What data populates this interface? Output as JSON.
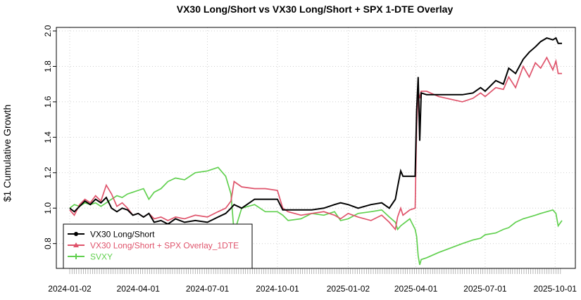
{
  "chart_data": {
    "type": "line",
    "title": "VX30 Long/Short vs VX30 Long/Short + SPX 1-DTE Overlay",
    "xlabel": "",
    "ylabel": "$1 Cumulative Growth",
    "x_ticks": [
      "2024-01-02",
      "2024-04-01",
      "2024-07-01",
      "2024-10-01",
      "2025-01-02",
      "2025-04-01",
      "2025-07-01",
      "2025-10-01"
    ],
    "y_ticks": [
      0.8,
      1.0,
      1.2,
      1.4,
      1.6,
      1.8,
      2.0
    ],
    "xlim": [
      "2024-01-02",
      "2025-10-10"
    ],
    "ylim": [
      0.66,
      2.02
    ],
    "grid": true,
    "legend_position": "bottom-left",
    "series": [
      {
        "name": "VX30 Long/Short",
        "color": "#000000",
        "marker": "circle",
        "points": [
          [
            "2024-01-02",
            1.0
          ],
          [
            "2024-01-08",
            0.98
          ],
          [
            "2024-01-15",
            1.01
          ],
          [
            "2024-01-22",
            1.04
          ],
          [
            "2024-01-29",
            1.02
          ],
          [
            "2024-02-05",
            1.05
          ],
          [
            "2024-02-12",
            1.03
          ],
          [
            "2024-02-19",
            1.06
          ],
          [
            "2024-02-26",
            1.0
          ],
          [
            "2024-03-04",
            0.98
          ],
          [
            "2024-03-11",
            1.0
          ],
          [
            "2024-03-18",
            0.99
          ],
          [
            "2024-03-25",
            0.96
          ],
          [
            "2024-04-01",
            0.97
          ],
          [
            "2024-04-08",
            0.95
          ],
          [
            "2024-04-15",
            0.97
          ],
          [
            "2024-04-22",
            0.92
          ],
          [
            "2024-05-01",
            0.93
          ],
          [
            "2024-05-10",
            0.91
          ],
          [
            "2024-05-20",
            0.94
          ],
          [
            "2024-06-01",
            0.92
          ],
          [
            "2024-06-15",
            0.93
          ],
          [
            "2024-07-01",
            0.92
          ],
          [
            "2024-07-15",
            0.95
          ],
          [
            "2024-07-25",
            0.97
          ],
          [
            "2024-08-01",
            1.0
          ],
          [
            "2024-08-05",
            1.02
          ],
          [
            "2024-08-15",
            1.0
          ],
          [
            "2024-09-01",
            1.05
          ],
          [
            "2024-09-15",
            1.05
          ],
          [
            "2024-10-01",
            1.05
          ],
          [
            "2024-10-08",
            0.99
          ],
          [
            "2024-10-15",
            0.99
          ],
          [
            "2024-11-01",
            0.99
          ],
          [
            "2024-11-15",
            0.99
          ],
          [
            "2024-12-01",
            1.0
          ],
          [
            "2024-12-15",
            1.02
          ],
          [
            "2024-12-23",
            1.03
          ],
          [
            "2025-01-02",
            1.02
          ],
          [
            "2025-01-15",
            1.0
          ],
          [
            "2025-02-01",
            1.02
          ],
          [
            "2025-02-15",
            1.03
          ],
          [
            "2025-02-25",
            1.0
          ],
          [
            "2025-03-05",
            1.05
          ],
          [
            "2025-03-08",
            1.12
          ],
          [
            "2025-03-12",
            1.21
          ],
          [
            "2025-03-15",
            1.18
          ],
          [
            "2025-03-24",
            1.18
          ],
          [
            "2025-03-31",
            1.18
          ],
          [
            "2025-04-02",
            1.55
          ],
          [
            "2025-04-04",
            1.74
          ],
          [
            "2025-04-06",
            1.38
          ],
          [
            "2025-04-08",
            1.65
          ],
          [
            "2025-04-15",
            1.64
          ],
          [
            "2025-05-01",
            1.64
          ],
          [
            "2025-06-01",
            1.64
          ],
          [
            "2025-06-15",
            1.65
          ],
          [
            "2025-06-25",
            1.68
          ],
          [
            "2025-07-01",
            1.66
          ],
          [
            "2025-07-15",
            1.72
          ],
          [
            "2025-07-25",
            1.7
          ],
          [
            "2025-08-01",
            1.79
          ],
          [
            "2025-08-10",
            1.76
          ],
          [
            "2025-08-20",
            1.84
          ],
          [
            "2025-08-28",
            1.88
          ],
          [
            "2025-09-05",
            1.91
          ],
          [
            "2025-09-12",
            1.94
          ],
          [
            "2025-09-20",
            1.96
          ],
          [
            "2025-09-28",
            1.95
          ],
          [
            "2025-10-02",
            1.96
          ],
          [
            "2025-10-05",
            1.93
          ],
          [
            "2025-10-10",
            1.93
          ]
        ]
      },
      {
        "name": "VX30 Long/Short + SPX Overlay_1DTE",
        "color": "#df536b",
        "marker": "triangle",
        "points": [
          [
            "2024-01-02",
            0.99
          ],
          [
            "2024-01-08",
            0.96
          ],
          [
            "2024-01-15",
            1.02
          ],
          [
            "2024-01-22",
            1.05
          ],
          [
            "2024-01-29",
            1.03
          ],
          [
            "2024-02-05",
            1.07
          ],
          [
            "2024-02-12",
            1.04
          ],
          [
            "2024-02-19",
            1.13
          ],
          [
            "2024-02-26",
            1.08
          ],
          [
            "2024-03-04",
            1.01
          ],
          [
            "2024-03-11",
            1.03
          ],
          [
            "2024-03-18",
            1.0
          ],
          [
            "2024-03-25",
            0.96
          ],
          [
            "2024-04-01",
            0.97
          ],
          [
            "2024-04-08",
            0.95
          ],
          [
            "2024-04-15",
            0.97
          ],
          [
            "2024-04-22",
            0.94
          ],
          [
            "2024-05-01",
            0.95
          ],
          [
            "2024-05-10",
            0.93
          ],
          [
            "2024-05-20",
            0.95
          ],
          [
            "2024-06-01",
            0.94
          ],
          [
            "2024-06-15",
            0.96
          ],
          [
            "2024-07-01",
            0.95
          ],
          [
            "2024-07-15",
            0.98
          ],
          [
            "2024-07-25",
            1.0
          ],
          [
            "2024-08-01",
            1.04
          ],
          [
            "2024-08-05",
            1.15
          ],
          [
            "2024-08-15",
            1.12
          ],
          [
            "2024-09-01",
            1.11
          ],
          [
            "2024-09-15",
            1.11
          ],
          [
            "2024-10-01",
            1.1
          ],
          [
            "2024-10-08",
            1.0
          ],
          [
            "2024-10-15",
            0.98
          ],
          [
            "2024-11-01",
            0.96
          ],
          [
            "2024-11-15",
            0.97
          ],
          [
            "2024-12-01",
            0.98
          ],
          [
            "2024-12-15",
            0.96
          ],
          [
            "2024-12-23",
            0.94
          ],
          [
            "2025-01-02",
            0.97
          ],
          [
            "2025-01-15",
            0.95
          ],
          [
            "2025-02-01",
            0.93
          ],
          [
            "2025-02-15",
            0.96
          ],
          [
            "2025-02-25",
            0.92
          ],
          [
            "2025-03-05",
            0.88
          ],
          [
            "2025-03-08",
            0.95
          ],
          [
            "2025-03-12",
            1.0
          ],
          [
            "2025-03-15",
            0.96
          ],
          [
            "2025-03-24",
            0.99
          ],
          [
            "2025-03-31",
            1.0
          ],
          [
            "2025-04-02",
            1.46
          ],
          [
            "2025-04-04",
            1.66
          ],
          [
            "2025-04-06",
            1.62
          ],
          [
            "2025-04-08",
            1.66
          ],
          [
            "2025-04-15",
            1.66
          ],
          [
            "2025-05-01",
            1.63
          ],
          [
            "2025-06-01",
            1.6
          ],
          [
            "2025-06-15",
            1.62
          ],
          [
            "2025-06-25",
            1.65
          ],
          [
            "2025-07-01",
            1.63
          ],
          [
            "2025-07-15",
            1.68
          ],
          [
            "2025-07-25",
            1.67
          ],
          [
            "2025-08-01",
            1.74
          ],
          [
            "2025-08-10",
            1.68
          ],
          [
            "2025-08-20",
            1.8
          ],
          [
            "2025-08-28",
            1.74
          ],
          [
            "2025-09-05",
            1.82
          ],
          [
            "2025-09-12",
            1.79
          ],
          [
            "2025-09-20",
            1.85
          ],
          [
            "2025-09-28",
            1.78
          ],
          [
            "2025-10-02",
            1.83
          ],
          [
            "2025-10-05",
            1.76
          ],
          [
            "2025-10-10",
            1.76
          ]
        ]
      },
      {
        "name": "SVXY",
        "color": "#61d04f",
        "marker": "plus",
        "points": [
          [
            "2024-01-02",
            1.0
          ],
          [
            "2024-01-08",
            1.02
          ],
          [
            "2024-01-15",
            1.01
          ],
          [
            "2024-01-22",
            1.03
          ],
          [
            "2024-01-29",
            1.02
          ],
          [
            "2024-02-05",
            1.03
          ],
          [
            "2024-02-12",
            1.01
          ],
          [
            "2024-02-19",
            1.03
          ],
          [
            "2024-02-26",
            1.05
          ],
          [
            "2024-03-04",
            1.07
          ],
          [
            "2024-03-11",
            1.06
          ],
          [
            "2024-03-18",
            1.08
          ],
          [
            "2024-03-25",
            1.09
          ],
          [
            "2024-04-01",
            1.1
          ],
          [
            "2024-04-08",
            1.11
          ],
          [
            "2024-04-15",
            1.05
          ],
          [
            "2024-04-22",
            1.09
          ],
          [
            "2024-05-01",
            1.11
          ],
          [
            "2024-05-10",
            1.15
          ],
          [
            "2024-05-20",
            1.17
          ],
          [
            "2024-06-01",
            1.16
          ],
          [
            "2024-06-15",
            1.2
          ],
          [
            "2024-07-01",
            1.21
          ],
          [
            "2024-07-15",
            1.23
          ],
          [
            "2024-07-25",
            1.18
          ],
          [
            "2024-08-01",
            1.08
          ],
          [
            "2024-08-05",
            0.86
          ],
          [
            "2024-08-15",
            1.0
          ],
          [
            "2024-09-01",
            1.02
          ],
          [
            "2024-09-15",
            0.98
          ],
          [
            "2024-10-01",
            0.98
          ],
          [
            "2024-10-08",
            0.96
          ],
          [
            "2024-10-15",
            0.93
          ],
          [
            "2024-11-01",
            0.94
          ],
          [
            "2024-11-15",
            0.97
          ],
          [
            "2024-12-01",
            0.96
          ],
          [
            "2024-12-15",
            0.98
          ],
          [
            "2024-12-23",
            0.93
          ],
          [
            "2025-01-02",
            0.94
          ],
          [
            "2025-01-15",
            0.97
          ],
          [
            "2025-02-01",
            0.98
          ],
          [
            "2025-02-15",
            0.99
          ],
          [
            "2025-02-25",
            0.95
          ],
          [
            "2025-03-05",
            0.92
          ],
          [
            "2025-03-08",
            0.88
          ],
          [
            "2025-03-12",
            0.9
          ],
          [
            "2025-03-15",
            0.91
          ],
          [
            "2025-03-24",
            0.94
          ],
          [
            "2025-03-31",
            0.88
          ],
          [
            "2025-04-02",
            0.84
          ],
          [
            "2025-04-04",
            0.73
          ],
          [
            "2025-04-06",
            0.68
          ],
          [
            "2025-04-08",
            0.71
          ],
          [
            "2025-04-15",
            0.72
          ],
          [
            "2025-05-01",
            0.75
          ],
          [
            "2025-06-01",
            0.8
          ],
          [
            "2025-06-15",
            0.82
          ],
          [
            "2025-06-25",
            0.83
          ],
          [
            "2025-07-01",
            0.85
          ],
          [
            "2025-07-15",
            0.86
          ],
          [
            "2025-07-25",
            0.88
          ],
          [
            "2025-08-01",
            0.89
          ],
          [
            "2025-08-10",
            0.92
          ],
          [
            "2025-08-20",
            0.94
          ],
          [
            "2025-08-28",
            0.95
          ],
          [
            "2025-09-05",
            0.96
          ],
          [
            "2025-09-12",
            0.97
          ],
          [
            "2025-09-20",
            0.98
          ],
          [
            "2025-09-28",
            0.99
          ],
          [
            "2025-10-02",
            0.97
          ],
          [
            "2025-10-05",
            0.9
          ],
          [
            "2025-10-10",
            0.93
          ]
        ]
      }
    ]
  }
}
